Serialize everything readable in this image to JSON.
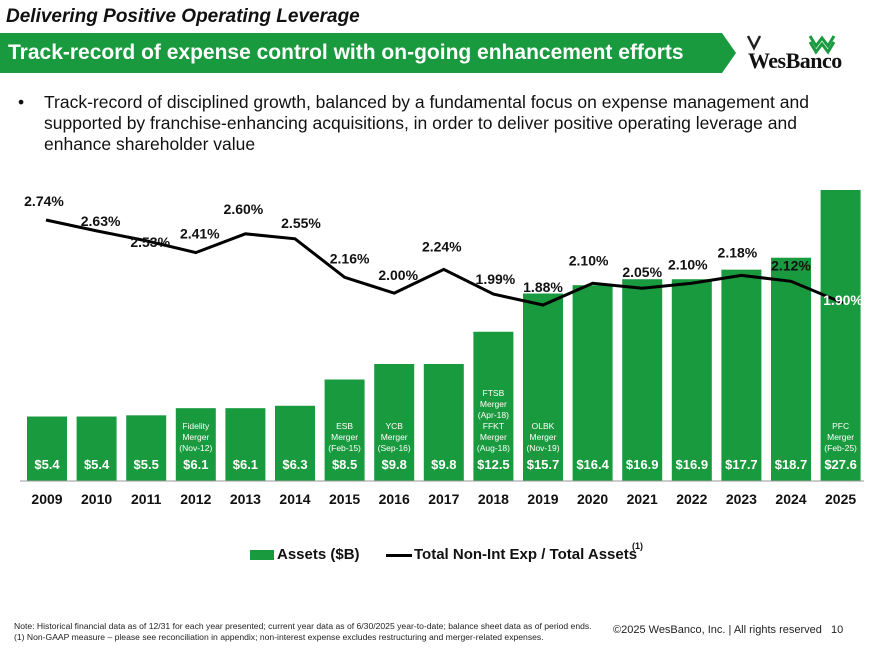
{
  "header": {
    "kicker": "Delivering Positive Operating Leverage",
    "title": "Track-record of expense control with on-going enhancement efforts",
    "logo_text": "WesBanco",
    "banner_color": "#1a9a3e"
  },
  "bullet": {
    "text": "Track-record of disciplined growth, balanced by a fundamental focus on expense management and supported by franchise-enhancing acquisitions, in order to deliver positive operating leverage and enhance shareholder value"
  },
  "chart_data": {
    "type": "bar",
    "title": "",
    "categories": [
      "2009",
      "2010",
      "2011",
      "2012",
      "2013",
      "2014",
      "2015",
      "2016",
      "2017",
      "2018",
      "2019",
      "2020",
      "2021",
      "2022",
      "2023",
      "2024",
      "2025"
    ],
    "series": [
      {
        "name": "Assets ($B)",
        "type": "bar",
        "color": "#1a9a3e",
        "values": [
          5.4,
          5.4,
          5.5,
          6.1,
          6.1,
          6.3,
          8.5,
          9.8,
          9.8,
          12.5,
          15.7,
          16.4,
          16.9,
          16.9,
          17.7,
          18.7,
          27.6
        ],
        "labels": [
          "$5.4",
          "$5.4",
          "$5.5",
          "$6.1",
          "$6.1",
          "$6.3",
          "$8.5",
          "$9.8",
          "$9.8",
          "$12.5",
          "$15.7",
          "$16.4",
          "$16.9",
          "$16.9",
          "$17.7",
          "$18.7",
          "$27.6"
        ]
      },
      {
        "name": "Total Non-Int Exp / Total Assets",
        "type": "line",
        "color": "#000000",
        "values": [
          2.74,
          2.63,
          2.53,
          2.41,
          2.6,
          2.55,
          2.16,
          2.0,
          2.24,
          1.99,
          1.88,
          2.1,
          2.05,
          2.1,
          2.18,
          2.12,
          1.9
        ],
        "labels": [
          "2.74%",
          "2.63%",
          "2.53%",
          "2.41%",
          "2.60%",
          "2.55%",
          "2.16%",
          "2.00%",
          "2.24%",
          "1.99%",
          "1.88%",
          "2.10%",
          "2.05%",
          "2.10%",
          "2.18%",
          "2.12%",
          "1.90%"
        ]
      }
    ],
    "annotations": [
      {
        "category": "2012",
        "lines": [
          "Fidelity",
          "Merger",
          "(Nov-12)"
        ]
      },
      {
        "category": "2015",
        "lines": [
          "ESB",
          "Merger",
          "(Feb-15)"
        ]
      },
      {
        "category": "2016",
        "lines": [
          "YCB",
          "Merger",
          "(Sep-16)"
        ]
      },
      {
        "category": "2018",
        "lines": [
          "FTSB",
          "Merger",
          "(Apr-18)",
          "FFKT",
          "Merger",
          "(Aug-18)"
        ]
      },
      {
        "category": "2019",
        "lines": [
          "OLBK",
          "Merger",
          "(Nov-19)"
        ]
      },
      {
        "category": "2025",
        "lines": [
          "PFC",
          "Merger",
          "(Feb-25)"
        ]
      }
    ]
  },
  "legend": {
    "bar_label": "Assets ($B)",
    "line_label": "Total Non-Int Exp / Total Assets",
    "superscript": "(1)"
  },
  "footer": {
    "note1": "Note: Historical financial data as of 12/31 for each year presented; current year data as of 6/30/2025 year-to-date; balance sheet data as of period ends.",
    "note2": "(1) Non-GAAP measure – please see reconciliation in appendix; non-interest expense excludes restructuring and merger-related expenses.",
    "copyright": "©2025 WesBanco, Inc.  |  All rights reserved",
    "page": "10"
  }
}
